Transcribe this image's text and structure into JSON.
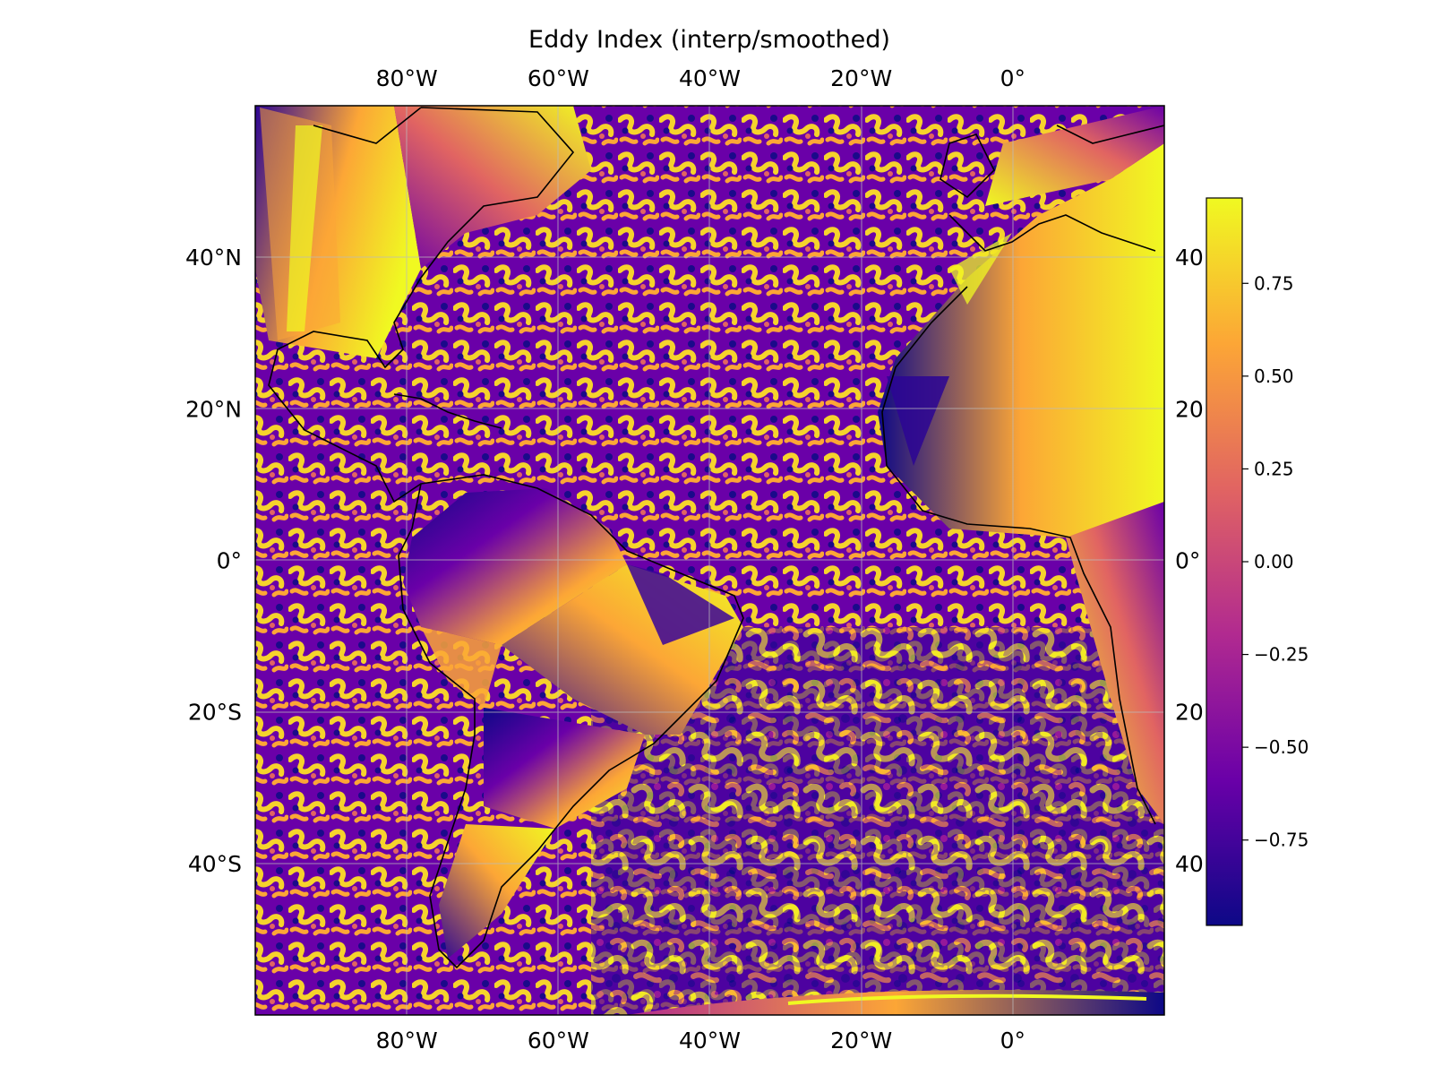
{
  "title": "Eddy Index (interp/smoothed)",
  "map": {
    "lon_range": [
      -100,
      20
    ],
    "lat_range": [
      -60,
      60
    ],
    "lon_ticks": [
      {
        "value": -80,
        "label": "80°W"
      },
      {
        "value": -60,
        "label": "60°W"
      },
      {
        "value": -40,
        "label": "40°W"
      },
      {
        "value": -20,
        "label": "20°W"
      },
      {
        "value": 0,
        "label": "0°"
      }
    ],
    "lat_ticks_left": [
      {
        "value": 40,
        "label": "40°N"
      },
      {
        "value": 20,
        "label": "20°N"
      },
      {
        "value": 0,
        "label": "0°"
      },
      {
        "value": -20,
        "label": "20°S"
      },
      {
        "value": -40,
        "label": "40°S"
      }
    ],
    "lat_ticks_right": [
      {
        "value": 40,
        "label": "40"
      },
      {
        "value": 20,
        "label": "20"
      },
      {
        "value": 0,
        "label": "0°"
      },
      {
        "value": -20,
        "label": "20"
      },
      {
        "value": -40,
        "label": "40"
      }
    ],
    "gridlines": true,
    "coastlines": true
  },
  "colorbar": {
    "colormap": "plasma",
    "vmin": -0.98,
    "vmax": 0.98,
    "ticks": [
      {
        "value": 0.75,
        "label": "0.75"
      },
      {
        "value": 0.5,
        "label": "0.50"
      },
      {
        "value": 0.25,
        "label": "0.25"
      },
      {
        "value": 0.0,
        "label": "0.00"
      },
      {
        "value": -0.25,
        "label": "−0.25"
      },
      {
        "value": -0.5,
        "label": "−0.50"
      },
      {
        "value": -0.75,
        "label": "−0.75"
      }
    ]
  },
  "colors": {
    "plasma_stops": [
      "#0d0887",
      "#6a00a8",
      "#b12a90",
      "#e16462",
      "#fca636",
      "#f0f921"
    ],
    "coastline": "#000000",
    "gridline": "#bbbbbb"
  }
}
